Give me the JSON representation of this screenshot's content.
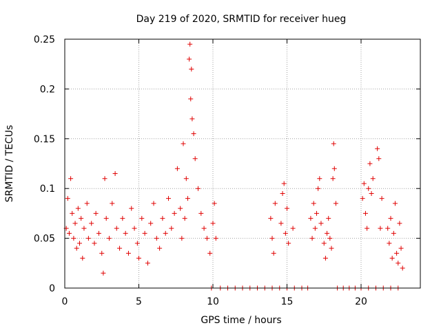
{
  "chart_data": {
    "type": "scatter",
    "title": "Day 219 of 2020, SRMTID for receiver hueg",
    "xlabel": "GPS time / hours",
    "ylabel": "SRMTID / TECUs",
    "xlim": [
      0,
      24
    ],
    "ylim": [
      0,
      0.25
    ],
    "xticks": [
      0,
      5,
      10,
      15,
      20
    ],
    "xtick_labels": [
      "0",
      "5",
      "10",
      "15",
      "20"
    ],
    "yticks": [
      0,
      0.05,
      0.1,
      0.15,
      0.2,
      0.25
    ],
    "ytick_labels": [
      "0",
      "0.05",
      "0.1",
      "0.15",
      "0.2",
      "0.25"
    ],
    "grid": true,
    "marker": "+",
    "color": "#e00000",
    "series": [
      {
        "name": "SRMTID",
        "points": [
          [
            0.1,
            0.06
          ],
          [
            0.2,
            0.09
          ],
          [
            0.3,
            0.055
          ],
          [
            0.4,
            0.11
          ],
          [
            0.5,
            0.075
          ],
          [
            0.6,
            0.05
          ],
          [
            0.7,
            0.065
          ],
          [
            0.8,
            0.04
          ],
          [
            0.9,
            0.08
          ],
          [
            1.0,
            0.045
          ],
          [
            1.1,
            0.07
          ],
          [
            1.2,
            0.03
          ],
          [
            1.3,
            0.06
          ],
          [
            1.5,
            0.085
          ],
          [
            1.6,
            0.05
          ],
          [
            1.8,
            0.065
          ],
          [
            2.0,
            0.045
          ],
          [
            2.1,
            0.075
          ],
          [
            2.3,
            0.055
          ],
          [
            2.5,
            0.035
          ],
          [
            2.6,
            0.015
          ],
          [
            2.7,
            0.11
          ],
          [
            2.8,
            0.07
          ],
          [
            3.0,
            0.05
          ],
          [
            3.2,
            0.085
          ],
          [
            3.4,
            0.115
          ],
          [
            3.5,
            0.06
          ],
          [
            3.7,
            0.04
          ],
          [
            3.9,
            0.07
          ],
          [
            4.1,
            0.055
          ],
          [
            4.3,
            0.035
          ],
          [
            4.5,
            0.08
          ],
          [
            4.7,
            0.06
          ],
          [
            4.9,
            0.045
          ],
          [
            5.0,
            0.03
          ],
          [
            5.2,
            0.07
          ],
          [
            5.4,
            0.055
          ],
          [
            5.6,
            0.025
          ],
          [
            5.8,
            0.065
          ],
          [
            6.0,
            0.085
          ],
          [
            6.2,
            0.05
          ],
          [
            6.4,
            0.04
          ],
          [
            6.6,
            0.07
          ],
          [
            6.8,
            0.055
          ],
          [
            7.0,
            0.09
          ],
          [
            7.2,
            0.06
          ],
          [
            7.4,
            0.075
          ],
          [
            7.6,
            0.12
          ],
          [
            7.8,
            0.08
          ],
          [
            7.9,
            0.05
          ],
          [
            8.0,
            0.145
          ],
          [
            8.1,
            0.07
          ],
          [
            8.2,
            0.11
          ],
          [
            8.3,
            0.09
          ],
          [
            8.4,
            0.23
          ],
          [
            8.45,
            0.245
          ],
          [
            8.5,
            0.19
          ],
          [
            8.55,
            0.22
          ],
          [
            8.6,
            0.17
          ],
          [
            8.7,
            0.155
          ],
          [
            8.8,
            0.13
          ],
          [
            9.0,
            0.1
          ],
          [
            9.2,
            0.075
          ],
          [
            9.4,
            0.06
          ],
          [
            9.6,
            0.05
          ],
          [
            9.8,
            0.035
          ],
          [
            10.0,
            0.065
          ],
          [
            10.1,
            0.085
          ],
          [
            10.2,
            0.05
          ],
          [
            13.9,
            0.07
          ],
          [
            14.0,
            0.05
          ],
          [
            14.1,
            0.035
          ],
          [
            14.2,
            0.085
          ],
          [
            14.6,
            0.065
          ],
          [
            14.7,
            0.095
          ],
          [
            14.8,
            0.105
          ],
          [
            14.9,
            0.055
          ],
          [
            15.0,
            0.08
          ],
          [
            15.1,
            0.045
          ],
          [
            15.4,
            0.06
          ],
          [
            16.6,
            0.07
          ],
          [
            16.7,
            0.05
          ],
          [
            16.8,
            0.085
          ],
          [
            16.9,
            0.06
          ],
          [
            17.0,
            0.075
          ],
          [
            17.1,
            0.1
          ],
          [
            17.2,
            0.11
          ],
          [
            17.3,
            0.065
          ],
          [
            17.5,
            0.045
          ],
          [
            17.6,
            0.03
          ],
          [
            17.7,
            0.055
          ],
          [
            17.8,
            0.07
          ],
          [
            17.9,
            0.05
          ],
          [
            18.0,
            0.04
          ],
          [
            18.1,
            0.11
          ],
          [
            18.15,
            0.145
          ],
          [
            18.2,
            0.12
          ],
          [
            18.3,
            0.085
          ],
          [
            20.1,
            0.09
          ],
          [
            20.2,
            0.105
          ],
          [
            20.3,
            0.075
          ],
          [
            20.4,
            0.06
          ],
          [
            20.5,
            0.1
          ],
          [
            20.6,
            0.125
          ],
          [
            20.7,
            0.095
          ],
          [
            20.8,
            0.11
          ],
          [
            21.1,
            0.14
          ],
          [
            21.2,
            0.13
          ],
          [
            21.3,
            0.06
          ],
          [
            21.4,
            0.09
          ],
          [
            21.8,
            0.06
          ],
          [
            21.9,
            0.045
          ],
          [
            22.0,
            0.07
          ],
          [
            22.1,
            0.03
          ],
          [
            22.2,
            0.055
          ],
          [
            22.3,
            0.085
          ],
          [
            22.4,
            0.035
          ],
          [
            22.5,
            0.025
          ],
          [
            22.6,
            0.065
          ],
          [
            22.7,
            0.04
          ],
          [
            22.8,
            0.02
          ],
          [
            9.9,
            0
          ],
          [
            10.5,
            0
          ],
          [
            11.0,
            0
          ],
          [
            11.5,
            0
          ],
          [
            12.0,
            0
          ],
          [
            12.5,
            0
          ],
          [
            13.0,
            0
          ],
          [
            13.5,
            0
          ],
          [
            14.0,
            0
          ],
          [
            14.5,
            0
          ],
          [
            15.0,
            0
          ],
          [
            15.5,
            0
          ],
          [
            16.0,
            0
          ],
          [
            16.4,
            0
          ],
          [
            18.4,
            0
          ],
          [
            18.8,
            0
          ],
          [
            19.2,
            0
          ],
          [
            19.6,
            0
          ],
          [
            20.0,
            0
          ],
          [
            20.5,
            0
          ],
          [
            21.0,
            0
          ],
          [
            21.5,
            0
          ],
          [
            22.0,
            0
          ],
          [
            22.5,
            0
          ]
        ]
      }
    ]
  }
}
